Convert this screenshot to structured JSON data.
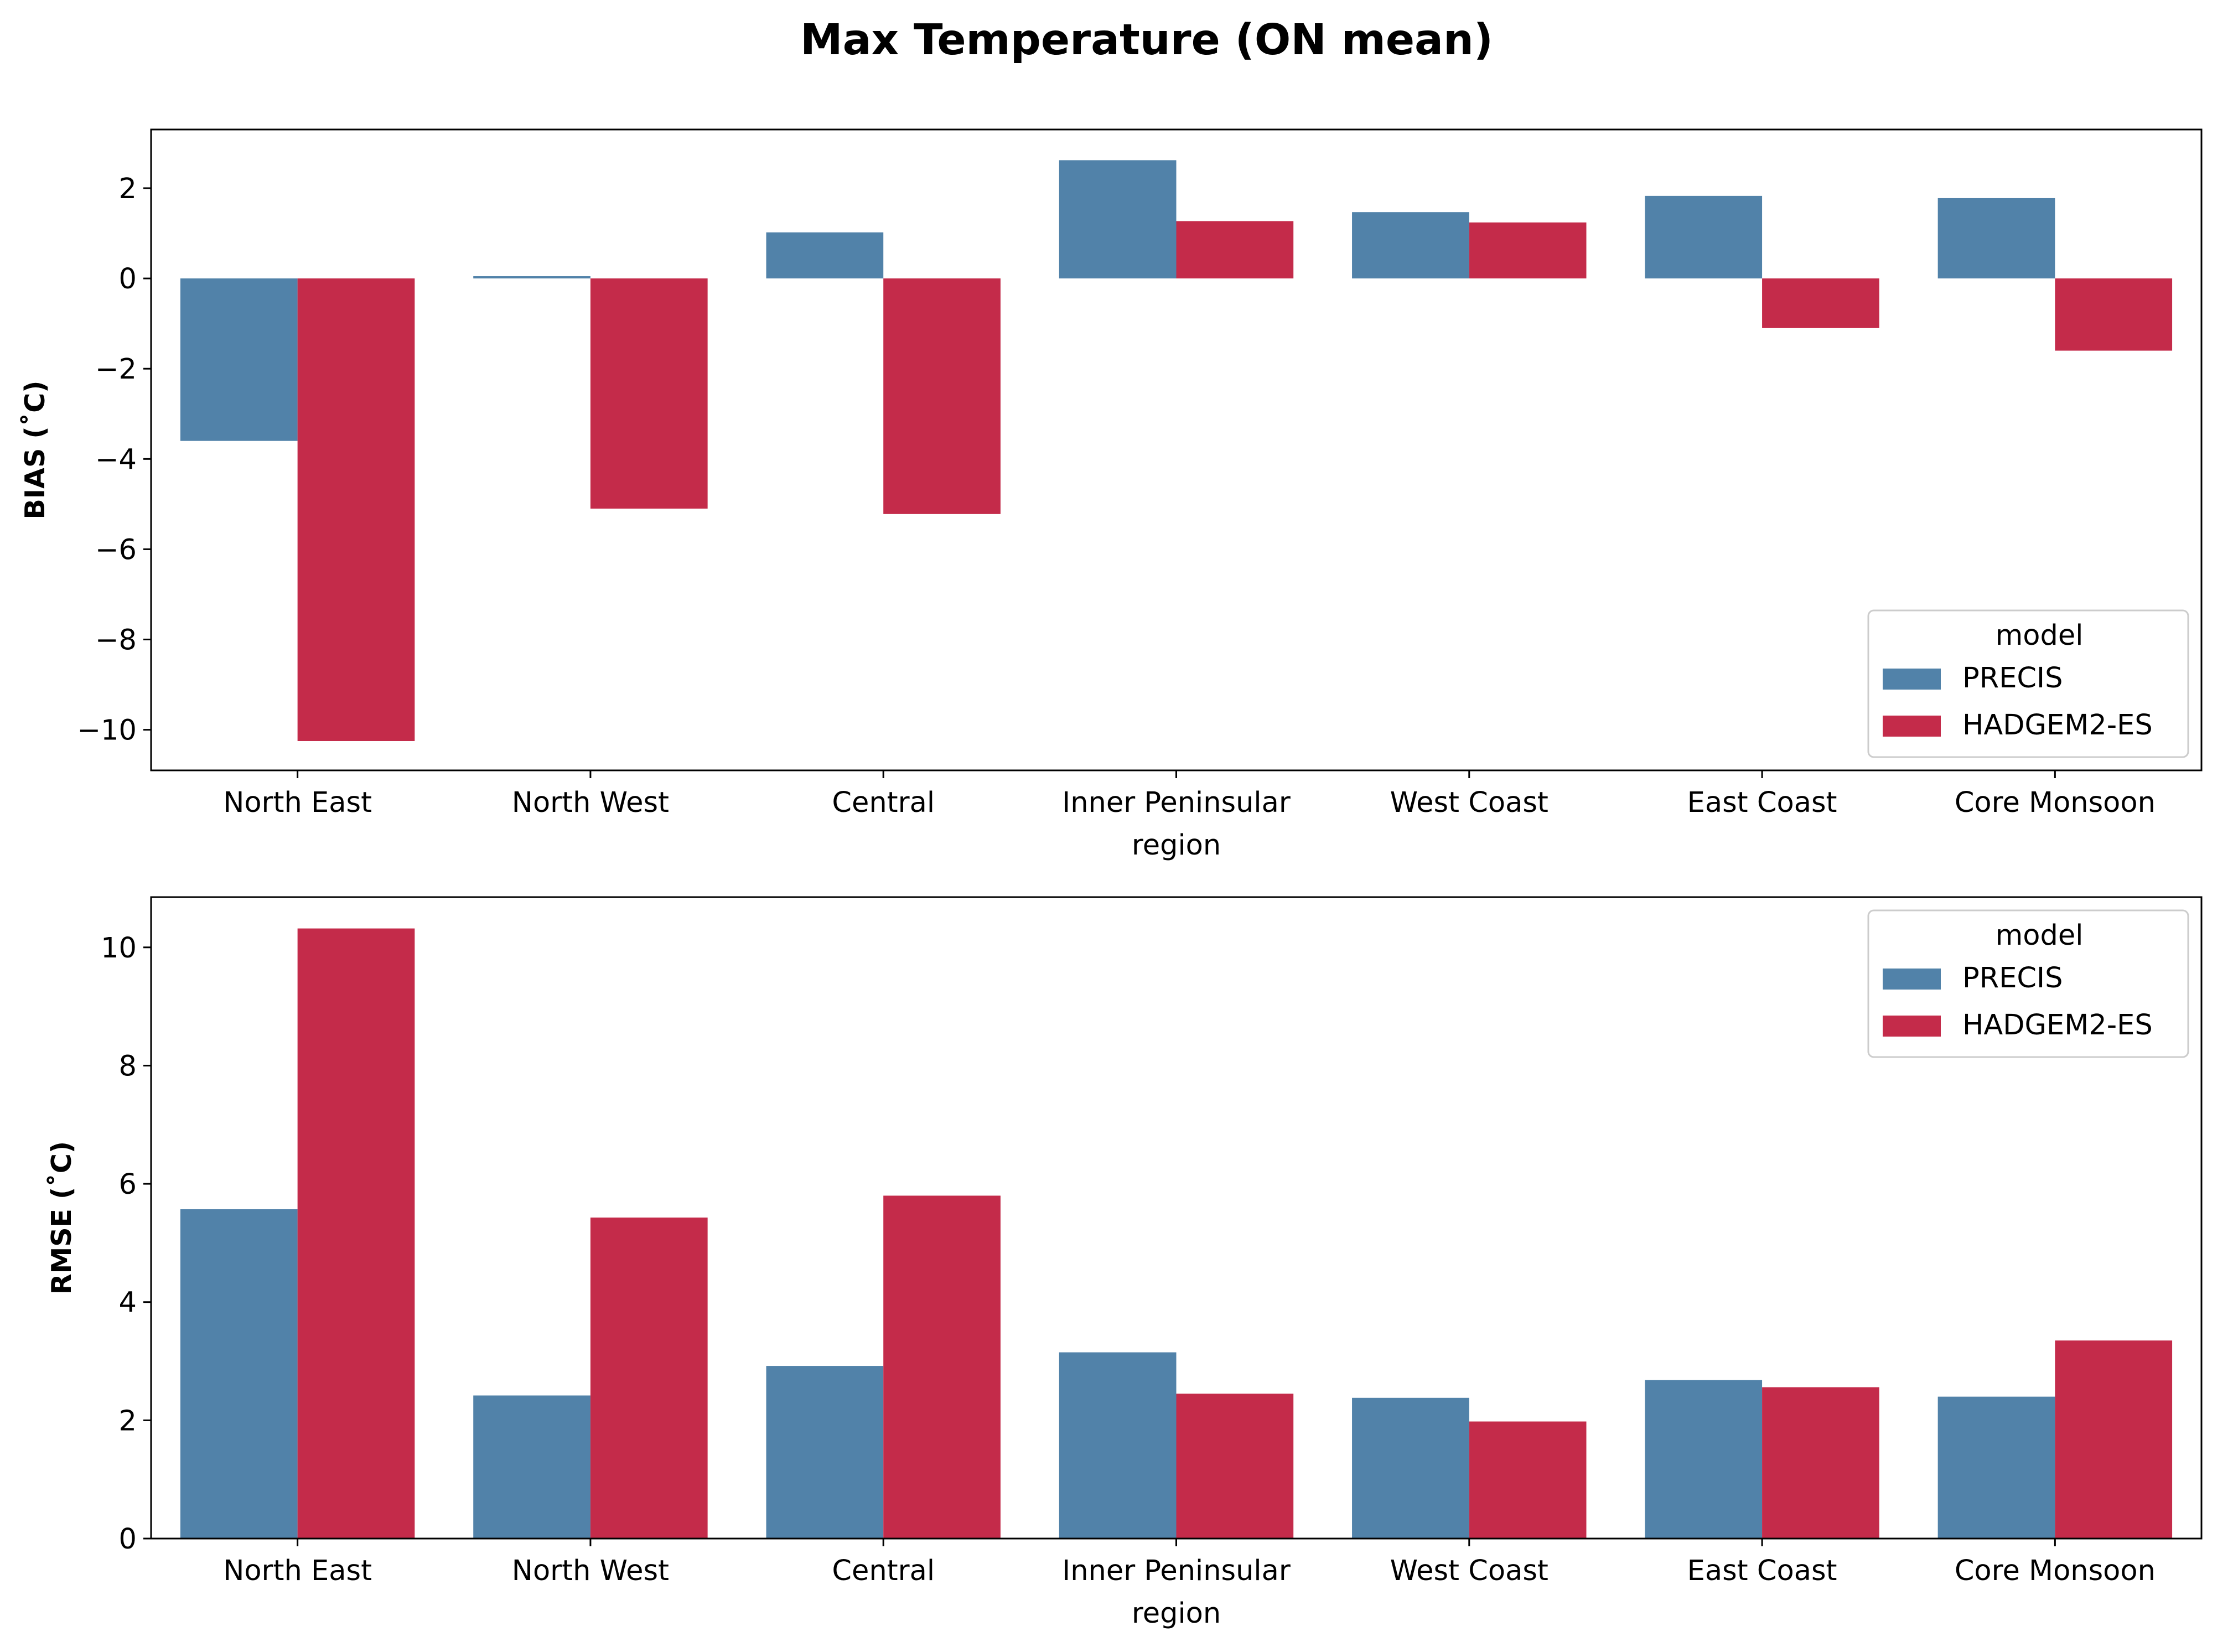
{
  "figure": {
    "title": "Max Temperature (ON mean)"
  },
  "colors": {
    "PRECIS": "#5182a9",
    "HADGEM2-ES": "#c42b4a"
  },
  "chart_data": [
    {
      "type": "bar",
      "title": "",
      "xlabel": "region",
      "ylabel": "BIAS ($^\\circ$C)",
      "ylabel_display": "BIAS (˚C)",
      "ylim": [
        -10.9,
        3.3
      ],
      "yticks": [
        2,
        0,
        -2,
        -4,
        -6,
        -8,
        -10
      ],
      "ytick_labels": [
        "2",
        "0",
        "−2",
        "−4",
        "−6",
        "−8",
        "−10"
      ],
      "categories": [
        "North East",
        "North West",
        "Central",
        "Inner Peninsular",
        "West Coast",
        "East Coast",
        "Core Monsoon"
      ],
      "series": [
        {
          "name": "PRECIS",
          "values": [
            -3.6,
            0.05,
            1.02,
            2.62,
            1.47,
            1.83,
            1.78
          ]
        },
        {
          "name": "HADGEM2-ES",
          "values": [
            -10.25,
            -5.1,
            -5.22,
            1.27,
            1.24,
            -1.1,
            -1.6
          ]
        }
      ],
      "legend": {
        "title": "model",
        "position": "lower-right"
      }
    },
    {
      "type": "bar",
      "title": "",
      "xlabel": "region",
      "ylabel": "RMSE ($^\\circ$C)",
      "ylabel_display": "RMSE (˚C)",
      "ylim": [
        0,
        10.85
      ],
      "yticks": [
        0,
        2,
        4,
        6,
        8,
        10
      ],
      "ytick_labels": [
        "0",
        "2",
        "4",
        "6",
        "8",
        "10"
      ],
      "categories": [
        "North East",
        "North West",
        "Central",
        "Inner Peninsular",
        "West Coast",
        "East Coast",
        "Core Monsoon"
      ],
      "series": [
        {
          "name": "PRECIS",
          "values": [
            5.57,
            2.42,
            2.92,
            3.15,
            2.38,
            2.68,
            2.4
          ]
        },
        {
          "name": "HADGEM2-ES",
          "values": [
            10.32,
            5.43,
            5.8,
            2.45,
            1.98,
            2.56,
            3.35
          ]
        }
      ],
      "legend": {
        "title": "model",
        "position": "upper-right"
      }
    }
  ]
}
